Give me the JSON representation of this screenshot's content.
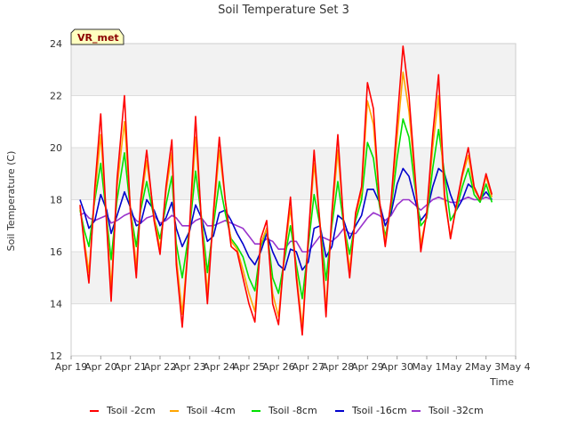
{
  "chart_data": {
    "type": "line",
    "title": "Soil Temperature Set 3",
    "xlabel": "Time",
    "ylabel": "Soil Temperature (C)",
    "ylim": [
      12,
      24
    ],
    "xlim": [
      0,
      15
    ],
    "yticks": [
      12,
      14,
      16,
      18,
      20,
      22,
      24
    ],
    "xtick_labels": [
      "Apr 19",
      "Apr 20",
      "Apr 21",
      "Apr 22",
      "Apr 23",
      "Apr 24",
      "Apr 25",
      "Apr 26",
      "Apr 27",
      "Apr 28",
      "Apr 29",
      "Apr 30",
      "May 1",
      "May 2",
      "May 3",
      "May 4"
    ],
    "grid": "horizontal bands",
    "legend_position": "bottom",
    "badge": "VR_met",
    "x_days": [
      0.3,
      0.45,
      0.6,
      0.8,
      1.0,
      1.2,
      1.35,
      1.55,
      1.8,
      2.0,
      2.2,
      2.35,
      2.55,
      2.8,
      3.0,
      3.2,
      3.4,
      3.55,
      3.75,
      4.0,
      4.2,
      4.4,
      4.6,
      4.8,
      5.0,
      5.2,
      5.4,
      5.6,
      5.8,
      6.0,
      6.2,
      6.4,
      6.6,
      6.8,
      7.0,
      7.2,
      7.4,
      7.6,
      7.8,
      8.0,
      8.2,
      8.4,
      8.6,
      8.8,
      9.0,
      9.2,
      9.4,
      9.6,
      9.8,
      10.0,
      10.2,
      10.4,
      10.6,
      10.8,
      11.0,
      11.2,
      11.4,
      11.6,
      11.8,
      12.0,
      12.2,
      12.4,
      12.6,
      12.8,
      13.0,
      13.2,
      13.4,
      13.6,
      13.8,
      14.0,
      14.2
    ],
    "series": [
      {
        "name": "Tsoil -2cm",
        "color": "#ff0000",
        "values": [
          17.8,
          16.2,
          14.8,
          18.5,
          21.3,
          17.0,
          14.1,
          18.8,
          22.0,
          17.5,
          15.0,
          18.0,
          19.9,
          17.2,
          15.9,
          18.5,
          20.3,
          15.5,
          13.1,
          17.0,
          21.2,
          17.0,
          14.0,
          17.5,
          20.4,
          18.0,
          16.2,
          16.0,
          15.0,
          14.0,
          13.3,
          16.5,
          17.2,
          14.0,
          13.2,
          16.0,
          18.1,
          15.0,
          12.8,
          16.5,
          19.9,
          17.0,
          13.5,
          17.5,
          20.5,
          17.0,
          15.0,
          17.5,
          18.5,
          22.5,
          21.5,
          18.0,
          16.2,
          18.0,
          21.0,
          23.9,
          22.0,
          19.0,
          16.0,
          17.5,
          20.5,
          22.8,
          18.2,
          16.5,
          17.8,
          19.0,
          20.0,
          18.5,
          18.0,
          19.0,
          18.2
        ]
      },
      {
        "name": "Tsoil -4cm",
        "color": "#ffa500",
        "values": [
          17.7,
          16.4,
          15.2,
          18.2,
          20.5,
          17.2,
          14.6,
          18.5,
          21.0,
          17.7,
          15.4,
          17.8,
          19.5,
          17.4,
          16.1,
          18.3,
          19.8,
          15.8,
          13.6,
          16.9,
          20.4,
          17.2,
          14.4,
          17.3,
          19.9,
          18.0,
          16.4,
          16.1,
          15.3,
          14.4,
          13.7,
          16.3,
          16.9,
          14.4,
          13.5,
          15.9,
          17.7,
          15.2,
          13.1,
          16.4,
          19.4,
          17.1,
          13.8,
          17.3,
          19.9,
          17.1,
          15.3,
          17.4,
          18.3,
          21.8,
          20.9,
          18.0,
          16.4,
          17.9,
          20.4,
          22.9,
          21.4,
          18.8,
          16.3,
          17.4,
          20.0,
          22.0,
          18.0,
          16.6,
          17.7,
          18.9,
          19.7,
          18.4,
          18.0,
          18.9,
          18.1
        ]
      },
      {
        "name": "Tsoil -8cm",
        "color": "#00e000",
        "values": [
          17.6,
          16.8,
          16.2,
          18.0,
          19.4,
          17.3,
          15.7,
          18.0,
          19.8,
          17.6,
          16.2,
          17.6,
          18.7,
          17.3,
          16.5,
          17.8,
          18.9,
          16.3,
          15.0,
          16.9,
          19.1,
          17.3,
          15.2,
          17.0,
          18.7,
          17.5,
          16.5,
          16.2,
          15.8,
          15.0,
          14.5,
          16.2,
          16.9,
          15.0,
          14.4,
          15.7,
          17.0,
          15.5,
          14.2,
          16.2,
          18.2,
          17.0,
          14.9,
          17.0,
          18.7,
          17.0,
          15.9,
          17.2,
          18.0,
          20.2,
          19.6,
          17.8,
          16.6,
          17.7,
          19.6,
          21.1,
          20.4,
          18.5,
          17.0,
          17.3,
          19.2,
          20.7,
          19.0,
          17.2,
          17.6,
          18.5,
          19.2,
          18.2,
          17.9,
          18.6,
          17.9
        ]
      },
      {
        "name": "Tsoil -16cm",
        "color": "#0000cc",
        "values": [
          18.0,
          17.5,
          16.9,
          17.2,
          18.2,
          17.6,
          16.7,
          17.4,
          18.3,
          17.7,
          17.0,
          17.1,
          18.0,
          17.6,
          17.0,
          17.3,
          17.9,
          16.9,
          16.2,
          16.8,
          17.8,
          17.3,
          16.4,
          16.6,
          17.5,
          17.6,
          17.2,
          16.7,
          16.3,
          15.8,
          15.5,
          16.0,
          16.7,
          16.0,
          15.5,
          15.3,
          16.1,
          16.0,
          15.3,
          15.6,
          16.9,
          17.0,
          15.8,
          16.2,
          17.4,
          17.2,
          16.5,
          17.0,
          17.4,
          18.4,
          18.4,
          17.9,
          17.0,
          17.5,
          18.6,
          19.2,
          18.9,
          18.0,
          17.2,
          17.5,
          18.5,
          19.2,
          19.0,
          18.2,
          17.6,
          18.0,
          18.6,
          18.4,
          18.0,
          18.3,
          18.0
        ]
      },
      {
        "name": "Tsoil -32cm",
        "color": "#9933cc",
        "values": [
          17.4,
          17.5,
          17.3,
          17.2,
          17.3,
          17.4,
          17.1,
          17.2,
          17.4,
          17.5,
          17.2,
          17.1,
          17.3,
          17.4,
          17.1,
          17.2,
          17.4,
          17.3,
          17.0,
          17.0,
          17.2,
          17.3,
          17.0,
          17.0,
          17.1,
          17.2,
          17.1,
          17.0,
          16.9,
          16.6,
          16.3,
          16.3,
          16.5,
          16.4,
          16.1,
          16.1,
          16.4,
          16.4,
          16.0,
          16.0,
          16.3,
          16.6,
          16.5,
          16.4,
          16.6,
          16.9,
          16.7,
          16.7,
          17.0,
          17.3,
          17.5,
          17.4,
          17.2,
          17.4,
          17.8,
          18.0,
          18.0,
          17.8,
          17.6,
          17.8,
          18.0,
          18.1,
          18.0,
          17.9,
          17.9,
          18.0,
          18.1,
          18.0,
          18.0,
          18.1,
          18.0
        ]
      }
    ]
  }
}
